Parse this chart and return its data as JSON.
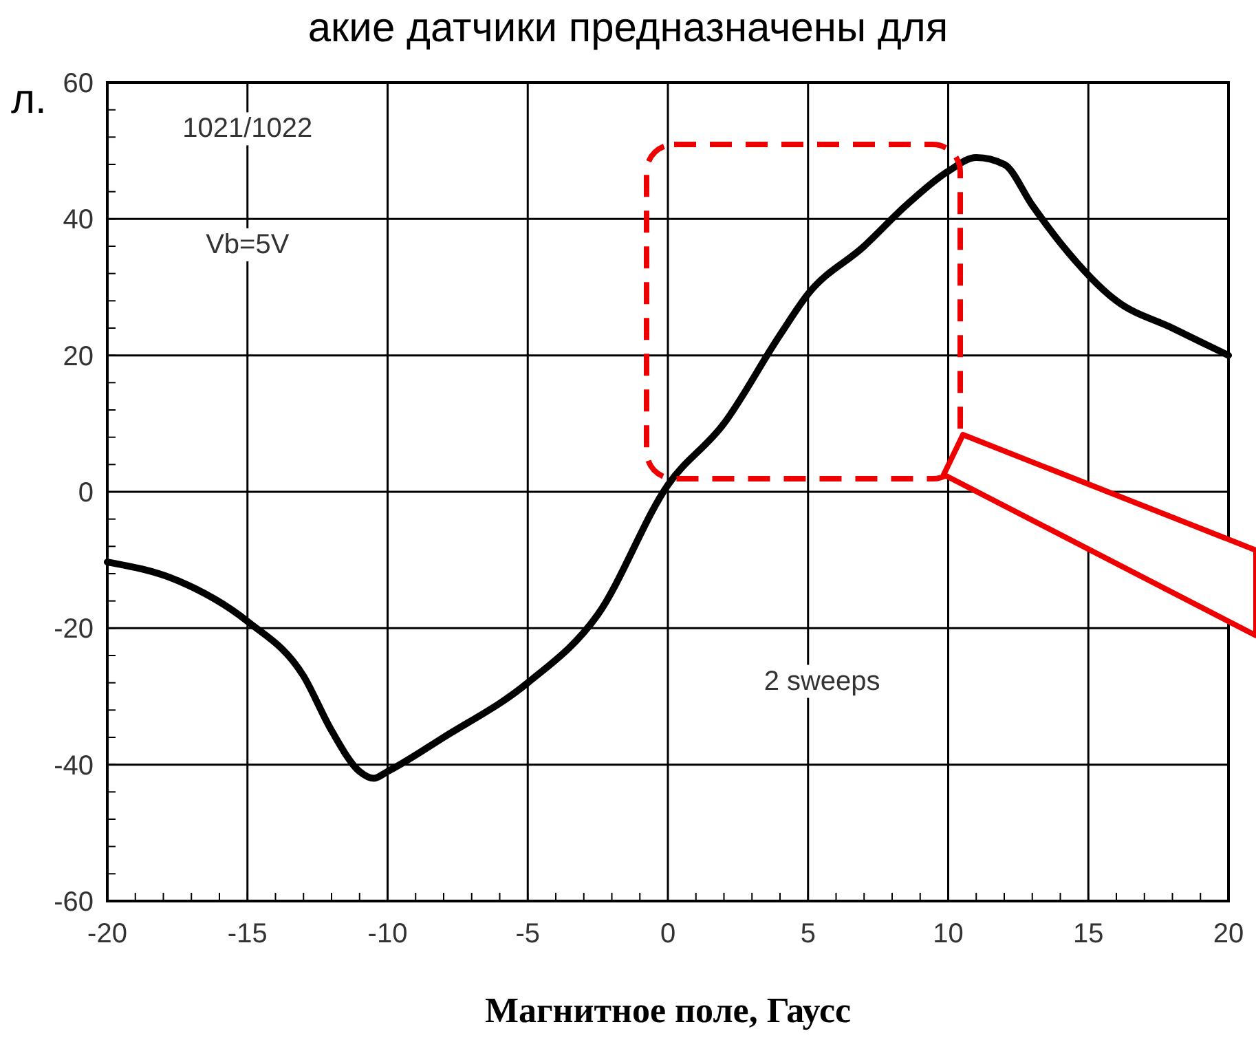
{
  "chart_data": {
    "type": "line",
    "xlabel": "Магнитное поле, Гаусс",
    "annotations": [
      "акие датчики предназначены для",
      "л.",
      "1021/1022",
      "Vb=5V",
      "2 sweeps"
    ],
    "x": [
      -20,
      -17.5,
      -15,
      -13,
      -12,
      -11,
      -10.5,
      -10,
      -8,
      -5,
      -2.5,
      0,
      2,
      4,
      5,
      7,
      8.5,
      10,
      11,
      12,
      13,
      14,
      16,
      18,
      20
    ],
    "series": [
      {
        "color": "#000000",
        "values": [
          -10.3,
          -13,
          -19,
          -27,
          -35,
          -41,
          -42,
          -41,
          -36,
          -28,
          -18,
          1,
          10,
          23,
          29,
          36,
          42,
          47,
          49,
          48,
          42,
          36.5,
          28,
          24,
          20
        ]
      }
    ],
    "xlim": [
      -20,
      20
    ],
    "xticks": [
      -20,
      -15,
      -10,
      -5,
      0,
      5,
      10,
      15,
      20
    ],
    "ylim": [
      -60,
      60
    ],
    "yticks": [
      -60,
      -40,
      -20,
      0,
      20,
      40,
      60
    ],
    "grid": true,
    "marker": "none",
    "line_style": "solid"
  }
}
